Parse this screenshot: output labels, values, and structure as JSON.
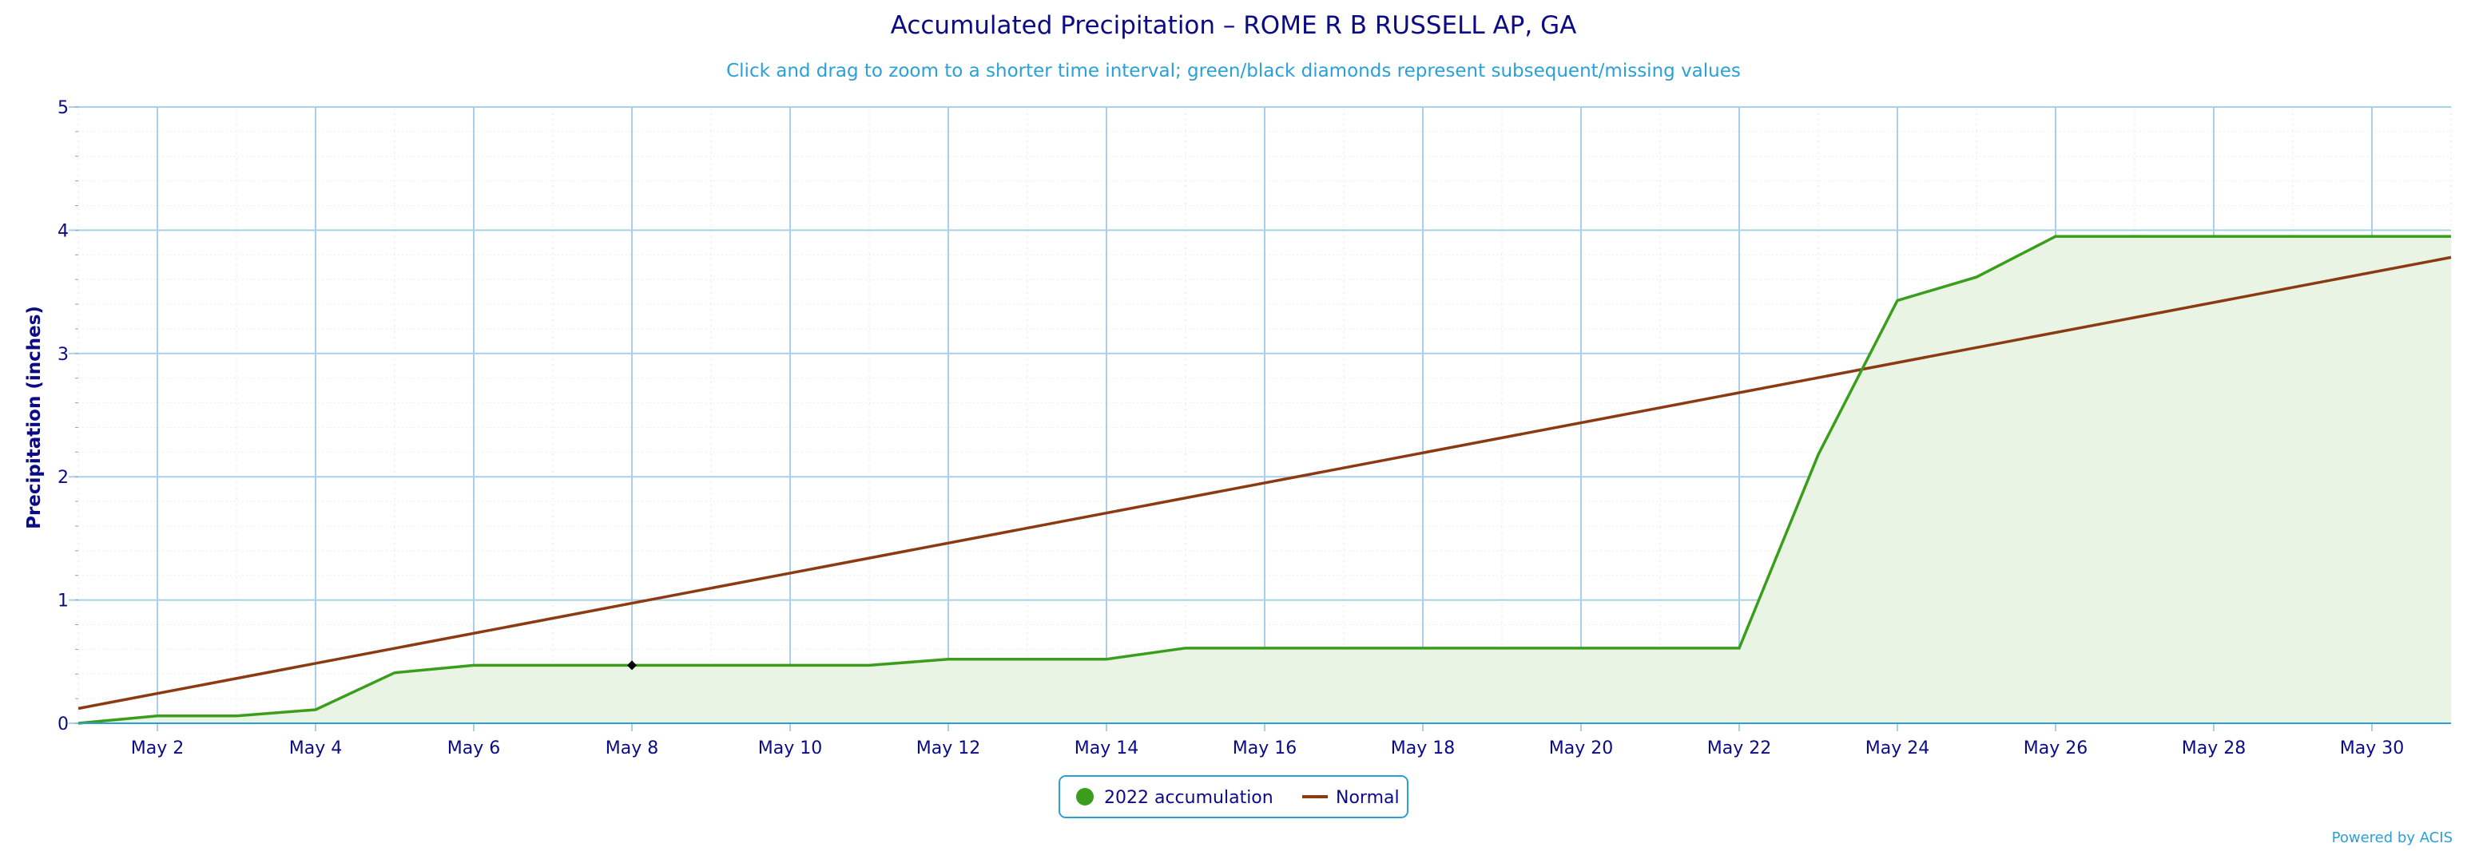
{
  "chart_data": {
    "type": "line",
    "title": "Accumulated Precipitation – ROME R B RUSSELL AP, GA",
    "subtitle": "Click and drag to zoom to a shorter time interval; green/black diamonds represent subsequent/missing values",
    "ylabel": "Precipitation (inches)",
    "xlabel": "",
    "ylim": [
      0,
      5
    ],
    "yticks": [
      "0",
      "1",
      "2",
      "3",
      "4",
      "5"
    ],
    "xlim": [
      1,
      31
    ],
    "xticks": [
      {
        "day": 2,
        "label": "May 2"
      },
      {
        "day": 4,
        "label": "May 4"
      },
      {
        "day": 6,
        "label": "May 6"
      },
      {
        "day": 8,
        "label": "May 8"
      },
      {
        "day": 10,
        "label": "May 10"
      },
      {
        "day": 12,
        "label": "May 12"
      },
      {
        "day": 14,
        "label": "May 14"
      },
      {
        "day": 16,
        "label": "May 16"
      },
      {
        "day": 18,
        "label": "May 18"
      },
      {
        "day": 20,
        "label": "May 20"
      },
      {
        "day": 22,
        "label": "May 22"
      },
      {
        "day": 24,
        "label": "May 24"
      },
      {
        "day": 26,
        "label": "May 26"
      },
      {
        "day": 28,
        "label": "May 28"
      },
      {
        "day": 30,
        "label": "May 30"
      }
    ],
    "grid": true,
    "legend_position": "bottom-center",
    "series": [
      {
        "name": "2022 accumulation",
        "color": "#3a9e1c",
        "fill": "#eaf4e4",
        "marker": "circle",
        "x": [
          1,
          2,
          3,
          4,
          5,
          6,
          7,
          8,
          9,
          10,
          11,
          12,
          13,
          14,
          15,
          16,
          17,
          18,
          19,
          20,
          21,
          22,
          23,
          24,
          25,
          26,
          27,
          28,
          29,
          30,
          31
        ],
        "y": [
          0.0,
          0.06,
          0.06,
          0.11,
          0.41,
          0.47,
          0.47,
          0.47,
          0.47,
          0.47,
          0.47,
          0.52,
          0.52,
          0.52,
          0.61,
          0.61,
          0.61,
          0.61,
          0.61,
          0.61,
          0.61,
          0.61,
          2.18,
          3.43,
          3.62,
          3.95,
          3.95,
          3.95,
          3.95,
          3.95,
          3.95
        ]
      },
      {
        "name": "Normal",
        "color": "#8b3a12",
        "marker": "line",
        "x": [
          1,
          31
        ],
        "y": [
          0.12,
          3.78
        ]
      }
    ],
    "missing_markers": [
      {
        "x": 8,
        "y": 0.47,
        "color": "#000000"
      }
    ],
    "credit": "Powered by ACIS"
  }
}
